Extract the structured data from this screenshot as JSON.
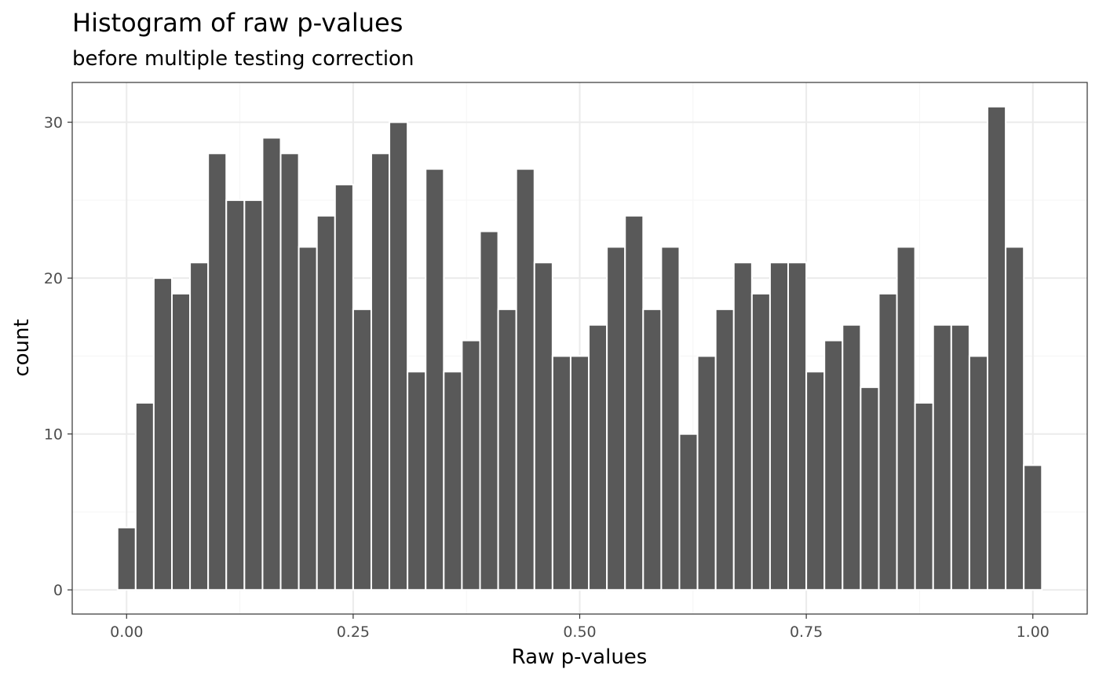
{
  "chart_data": {
    "type": "bar",
    "title": "Histogram of raw p-values",
    "subtitle": "before multiple testing correction",
    "xlabel": "Raw p-values",
    "ylabel": "count",
    "xlim": [
      -0.06,
      1.06
    ],
    "ylim": [
      -1.55,
      32.55
    ],
    "x_ticks": [
      {
        "value": 0.0,
        "label": "0.00"
      },
      {
        "value": 0.25,
        "label": "0.25"
      },
      {
        "value": 0.5,
        "label": "0.50"
      },
      {
        "value": 0.75,
        "label": "0.75"
      },
      {
        "value": 1.0,
        "label": "1.00"
      }
    ],
    "y_ticks": [
      {
        "value": 0,
        "label": "0"
      },
      {
        "value": 10,
        "label": "10"
      },
      {
        "value": 20,
        "label": "20"
      },
      {
        "value": 30,
        "label": "30"
      }
    ],
    "bin_start": -0.01,
    "bin_width": 0.02,
    "values": [
      4,
      12,
      20,
      19,
      21,
      28,
      25,
      25,
      29,
      28,
      22,
      24,
      26,
      18,
      28,
      30,
      14,
      27,
      14,
      16,
      23,
      18,
      27,
      21,
      15,
      15,
      17,
      22,
      24,
      18,
      22,
      10,
      15,
      18,
      21,
      19,
      21,
      21,
      14,
      16,
      17,
      13,
      19,
      22,
      12,
      17,
      17,
      15,
      31,
      22,
      8
    ],
    "bar_color": "#595959",
    "bar_outline": "#ffffff",
    "panel_border": "#333333",
    "grid_major": "#ebebeb",
    "grid_minor": "#f5f5f5",
    "grid": true,
    "legend": "none"
  }
}
